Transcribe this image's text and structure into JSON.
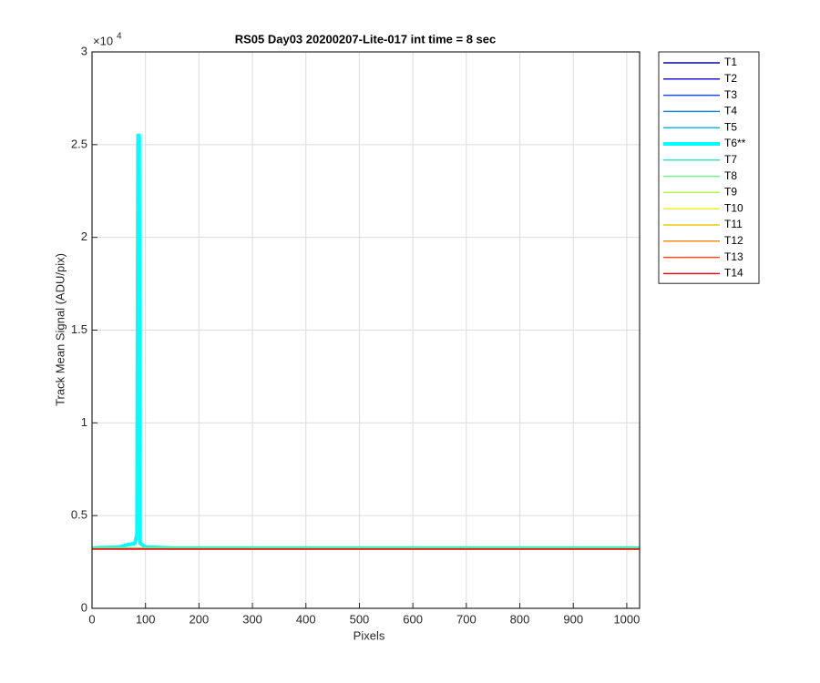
{
  "chart_data": {
    "type": "line",
    "title": "RS05 Day03 20200207-Lite-017 int time = 8 sec",
    "x_label": "Pixels",
    "y_label": "Track Mean Signal (ADU/pix)",
    "y_multiplier": {
      "base": "×10",
      "exponent": "4"
    },
    "x": [
      0,
      50,
      70,
      80,
      84,
      86,
      88,
      90,
      100,
      150,
      300,
      500,
      700,
      900,
      1024
    ],
    "xlim": [
      0,
      1024
    ],
    "xticks": [
      0,
      100,
      200,
      300,
      400,
      500,
      600,
      700,
      800,
      900,
      1000
    ],
    "ylim": [
      0,
      3
    ],
    "yticks": [
      0,
      0.5,
      1,
      1.5,
      2,
      2.5,
      3
    ],
    "grid": true,
    "legend": "outside-right",
    "series": [
      {
        "name": "T1",
        "color": "#0a0aa0",
        "linewidth": 1.5,
        "values": [
          0.323,
          0.323,
          0.323,
          0.323,
          0.323,
          0.323,
          0.323,
          0.323,
          0.323,
          0.323,
          0.323,
          0.323,
          0.323,
          0.323,
          0.323
        ]
      },
      {
        "name": "T2",
        "color": "#1a1acd",
        "linewidth": 1.5,
        "values": [
          0.323,
          0.323,
          0.323,
          0.323,
          0.323,
          0.323,
          0.323,
          0.323,
          0.323,
          0.323,
          0.323,
          0.323,
          0.323,
          0.323,
          0.323
        ]
      },
      {
        "name": "T3",
        "color": "#1a4ee0",
        "linewidth": 1.5,
        "values": [
          0.324,
          0.324,
          0.324,
          0.324,
          0.324,
          0.324,
          0.324,
          0.324,
          0.324,
          0.324,
          0.324,
          0.324,
          0.324,
          0.324,
          0.324
        ]
      },
      {
        "name": "T4",
        "color": "#1e82dc",
        "linewidth": 1.5,
        "values": [
          0.324,
          0.324,
          0.324,
          0.324,
          0.324,
          0.324,
          0.324,
          0.324,
          0.324,
          0.324,
          0.324,
          0.324,
          0.324,
          0.324,
          0.324
        ]
      },
      {
        "name": "T5",
        "color": "#1eb4f0",
        "linewidth": 1.5,
        "values": [
          0.325,
          0.325,
          0.325,
          0.325,
          0.325,
          0.325,
          0.325,
          0.325,
          0.325,
          0.325,
          0.325,
          0.325,
          0.325,
          0.325,
          0.325
        ]
      },
      {
        "name": "T6**",
        "color": "#00ffff",
        "linewidth": 4,
        "values": [
          0.325,
          0.33,
          0.345,
          0.35,
          0.4,
          2.55,
          2.55,
          0.35,
          0.33,
          0.325,
          0.325,
          0.325,
          0.325,
          0.325,
          0.325
        ]
      },
      {
        "name": "T7",
        "color": "#3ce6c0",
        "linewidth": 1.5,
        "values": [
          0.324,
          0.324,
          0.324,
          0.324,
          0.324,
          0.324,
          0.324,
          0.324,
          0.324,
          0.324,
          0.324,
          0.324,
          0.324,
          0.324,
          0.324
        ]
      },
      {
        "name": "T8",
        "color": "#78f08c",
        "linewidth": 1.5,
        "values": [
          0.324,
          0.324,
          0.324,
          0.324,
          0.324,
          0.324,
          0.324,
          0.324,
          0.324,
          0.324,
          0.324,
          0.324,
          0.324,
          0.324,
          0.324
        ]
      },
      {
        "name": "T9",
        "color": "#b4f050",
        "linewidth": 1.5,
        "values": [
          0.323,
          0.323,
          0.323,
          0.323,
          0.323,
          0.323,
          0.323,
          0.323,
          0.323,
          0.323,
          0.323,
          0.323,
          0.323,
          0.323,
          0.323
        ]
      },
      {
        "name": "T10",
        "color": "#f0f032",
        "linewidth": 1.5,
        "values": [
          0.323,
          0.323,
          0.323,
          0.323,
          0.323,
          0.323,
          0.323,
          0.323,
          0.323,
          0.323,
          0.323,
          0.323,
          0.323,
          0.323,
          0.323
        ]
      },
      {
        "name": "T11",
        "color": "#f0c814",
        "linewidth": 1.5,
        "values": [
          0.322,
          0.322,
          0.322,
          0.322,
          0.322,
          0.322,
          0.322,
          0.322,
          0.322,
          0.322,
          0.322,
          0.322,
          0.322,
          0.322,
          0.322
        ]
      },
      {
        "name": "T12",
        "color": "#f08c1e",
        "linewidth": 1.5,
        "values": [
          0.321,
          0.321,
          0.321,
          0.321,
          0.321,
          0.321,
          0.321,
          0.321,
          0.321,
          0.321,
          0.321,
          0.321,
          0.321,
          0.321,
          0.321
        ]
      },
      {
        "name": "T13",
        "color": "#f0501e",
        "linewidth": 1.5,
        "values": [
          0.32,
          0.32,
          0.32,
          0.32,
          0.32,
          0.32,
          0.32,
          0.32,
          0.32,
          0.32,
          0.32,
          0.32,
          0.32,
          0.32,
          0.32
        ]
      },
      {
        "name": "T14",
        "color": "#e61414",
        "linewidth": 1.5,
        "values": [
          0.319,
          0.319,
          0.319,
          0.319,
          0.319,
          0.319,
          0.319,
          0.319,
          0.319,
          0.319,
          0.319,
          0.319,
          0.319,
          0.319,
          0.319
        ]
      }
    ]
  }
}
